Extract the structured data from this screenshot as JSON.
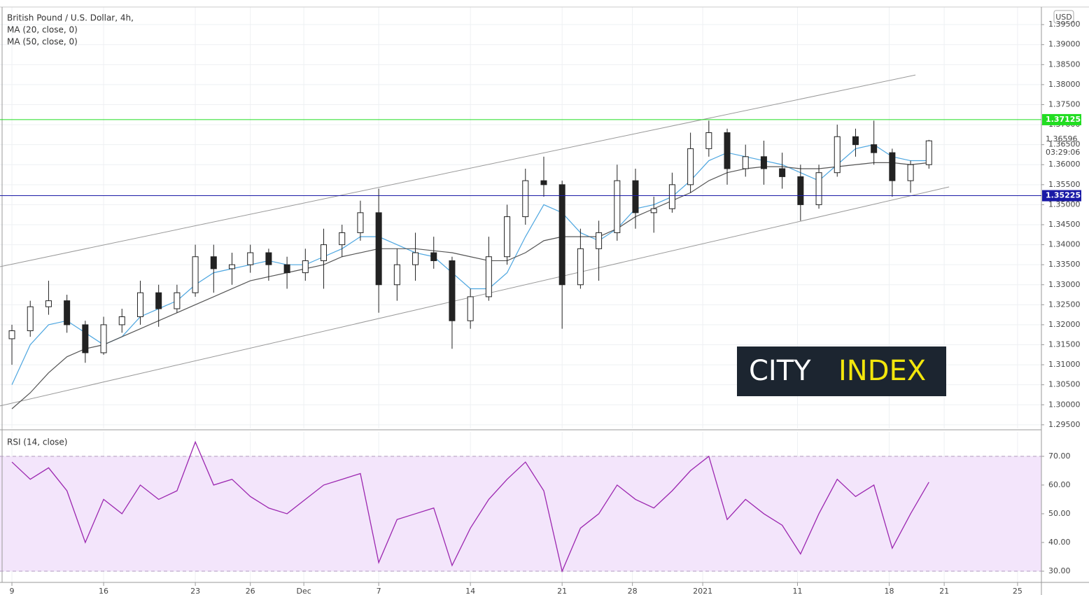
{
  "chart_data": [
    {
      "type": "candlestick",
      "title": "British Pound / U.S. Dollar, 4h,",
      "x": [
        0,
        6,
        12,
        18,
        24,
        30,
        36,
        42,
        48,
        54,
        60,
        66,
        72,
        78,
        84,
        90,
        96,
        102,
        108,
        114,
        120,
        126,
        132,
        138,
        144,
        150,
        156,
        162,
        168,
        174,
        180,
        186,
        192,
        198,
        204,
        210,
        216,
        222,
        228,
        234,
        240,
        246,
        252,
        258,
        264,
        270,
        276,
        282,
        288,
        294,
        300
      ],
      "open": [
        1.3165,
        1.3185,
        1.3245,
        1.326,
        1.32,
        1.313,
        1.32,
        1.322,
        1.328,
        1.324,
        1.328,
        1.337,
        1.334,
        1.335,
        1.338,
        1.335,
        1.333,
        1.336,
        1.34,
        1.343,
        1.348,
        1.33,
        1.335,
        1.338,
        1.336,
        1.321,
        1.327,
        1.337,
        1.347,
        1.356,
        1.355,
        1.33,
        1.339,
        1.343,
        1.356,
        1.348,
        1.349,
        1.355,
        1.364,
        1.368,
        1.359,
        1.362,
        1.359,
        1.357,
        1.35,
        1.358,
        1.367,
        1.365,
        1.363,
        1.356,
        1.36
      ],
      "high": [
        1.32,
        1.326,
        1.331,
        1.3275,
        1.321,
        1.322,
        1.324,
        1.331,
        1.33,
        1.33,
        1.34,
        1.34,
        1.338,
        1.34,
        1.339,
        1.337,
        1.339,
        1.344,
        1.345,
        1.351,
        1.354,
        1.339,
        1.343,
        1.342,
        1.337,
        1.329,
        1.342,
        1.35,
        1.359,
        1.362,
        1.356,
        1.344,
        1.346,
        1.36,
        1.359,
        1.352,
        1.358,
        1.368,
        1.371,
        1.369,
        1.365,
        1.366,
        1.363,
        1.36,
        1.36,
        1.37,
        1.369,
        1.371,
        1.364,
        1.361,
        1.3662
      ],
      "low": [
        1.31,
        1.317,
        1.3225,
        1.318,
        1.3105,
        1.3125,
        1.318,
        1.32,
        1.3195,
        1.323,
        1.327,
        1.328,
        1.33,
        1.333,
        1.331,
        1.329,
        1.331,
        1.329,
        1.337,
        1.341,
        1.323,
        1.326,
        1.331,
        1.334,
        1.314,
        1.319,
        1.326,
        1.335,
        1.345,
        1.352,
        1.319,
        1.329,
        1.331,
        1.341,
        1.344,
        1.343,
        1.348,
        1.353,
        1.362,
        1.355,
        1.357,
        1.355,
        1.354,
        1.346,
        1.349,
        1.357,
        1.362,
        1.36,
        1.352,
        1.353,
        1.359
      ],
      "close": [
        1.3185,
        1.3245,
        1.326,
        1.32,
        1.313,
        1.32,
        1.322,
        1.328,
        1.324,
        1.328,
        1.337,
        1.334,
        1.335,
        1.338,
        1.335,
        1.333,
        1.336,
        1.34,
        1.343,
        1.348,
        1.33,
        1.335,
        1.338,
        1.336,
        1.321,
        1.327,
        1.337,
        1.347,
        1.356,
        1.355,
        1.33,
        1.339,
        1.343,
        1.356,
        1.348,
        1.349,
        1.355,
        1.364,
        1.368,
        1.359,
        1.362,
        1.359,
        1.357,
        1.35,
        1.358,
        1.367,
        1.365,
        1.363,
        1.356,
        1.36,
        1.36596
      ],
      "series": [
        {
          "name": "MA (20, close, 0)",
          "color": "#4da6e0",
          "values": [
            1.305,
            1.315,
            1.32,
            1.321,
            1.318,
            1.315,
            1.317,
            1.322,
            1.324,
            1.326,
            1.33,
            1.333,
            1.334,
            1.335,
            1.336,
            1.335,
            1.335,
            1.337,
            1.339,
            1.342,
            1.342,
            1.34,
            1.338,
            1.337,
            1.333,
            1.329,
            1.329,
            1.333,
            1.342,
            1.35,
            1.348,
            1.343,
            1.341,
            1.344,
            1.349,
            1.35,
            1.352,
            1.356,
            1.361,
            1.363,
            1.362,
            1.361,
            1.36,
            1.358,
            1.356,
            1.36,
            1.364,
            1.365,
            1.362,
            1.361,
            1.361
          ]
        },
        {
          "name": "MA (50, close, 0)",
          "color": "#555555",
          "values": [
            1.299,
            1.303,
            1.308,
            1.312,
            1.314,
            1.315,
            1.317,
            1.319,
            1.321,
            1.323,
            1.325,
            1.327,
            1.329,
            1.331,
            1.332,
            1.333,
            1.334,
            1.335,
            1.337,
            1.338,
            1.339,
            1.339,
            1.339,
            1.3385,
            1.338,
            1.337,
            1.336,
            1.336,
            1.338,
            1.341,
            1.342,
            1.342,
            1.342,
            1.344,
            1.347,
            1.349,
            1.351,
            1.353,
            1.356,
            1.358,
            1.359,
            1.3595,
            1.3595,
            1.359,
            1.359,
            1.3595,
            1.36,
            1.3605,
            1.3605,
            1.36,
            1.3605
          ]
        }
      ],
      "trendlines": [
        {
          "x": [
            -3.9,
            295.6
          ],
          "y": [
            1.33451,
            1.38241
          ]
        },
        {
          "x": [
            -3.9,
            306.6
          ],
          "y": [
            1.29972,
            1.35444
          ]
        }
      ],
      "hlines": [
        {
          "value": 1.37125,
          "color": "#22dd22"
        },
        {
          "value": 1.35225,
          "color": "#1a1aa6"
        }
      ],
      "xlim": [
        -3.9,
        336.8
      ],
      "ylim": [
        1.2941,
        1.3994
      ],
      "yticks": [
        {
          "value": 1.295,
          "label": "1.29500"
        },
        {
          "value": 1.3,
          "label": "1.30000"
        },
        {
          "value": 1.305,
          "label": "1.30500"
        },
        {
          "value": 1.31,
          "label": "1.31000"
        },
        {
          "value": 1.315,
          "label": "1.31500"
        },
        {
          "value": 1.32,
          "label": "1.32000"
        },
        {
          "value": 1.325,
          "label": "1.32500"
        },
        {
          "value": 1.33,
          "label": "1.33000"
        },
        {
          "value": 1.335,
          "label": "1.33500"
        },
        {
          "value": 1.34,
          "label": "1.34000"
        },
        {
          "value": 1.345,
          "label": "1.34500"
        },
        {
          "value": 1.35,
          "label": "1.35000"
        },
        {
          "value": 1.355,
          "label": "1.35500"
        },
        {
          "value": 1.36,
          "label": "1.36000"
        },
        {
          "value": 1.365,
          "label": "1.36500"
        },
        {
          "value": 1.37,
          "label": "1.37000"
        },
        {
          "value": 1.375,
          "label": "1.37500"
        },
        {
          "value": 1.38,
          "label": "1.38000"
        },
        {
          "value": 1.385,
          "label": "1.38500"
        },
        {
          "value": 1.39,
          "label": "1.39000"
        },
        {
          "value": 1.395,
          "label": "1.39500"
        }
      ],
      "grid": true
    },
    {
      "type": "line",
      "title": "RSI (14, close)",
      "x": [
        0,
        6,
        12,
        18,
        24,
        30,
        36,
        42,
        48,
        54,
        60,
        66,
        72,
        78,
        84,
        90,
        96,
        102,
        108,
        114,
        120,
        126,
        132,
        138,
        144,
        150,
        156,
        162,
        168,
        174,
        180,
        186,
        192,
        198,
        204,
        210,
        216,
        222,
        228,
        234,
        240,
        246,
        252,
        258,
        264,
        270,
        276,
        282,
        288,
        294,
        300
      ],
      "values": [
        68,
        62,
        66,
        58,
        40,
        55,
        50,
        60,
        55,
        58,
        75,
        60,
        62,
        56,
        52,
        50,
        55,
        60,
        62,
        64,
        33,
        48,
        50,
        52,
        32,
        45,
        55,
        62,
        68,
        58,
        30,
        45,
        50,
        60,
        55,
        52,
        58,
        65,
        70,
        48,
        55,
        50,
        46,
        36,
        50,
        62,
        56,
        60,
        38,
        50,
        61
      ],
      "color": "#9c27b0",
      "band": [
        30,
        70
      ],
      "band_color": "#f3e5fb",
      "xlim": [
        -3.9,
        336.8
      ],
      "ylim": [
        26.1,
        78.5
      ],
      "yticks": [
        {
          "value": 30,
          "label": "30.00"
        },
        {
          "value": 40,
          "label": "40.00"
        },
        {
          "value": 50,
          "label": "50.00"
        },
        {
          "value": 60,
          "label": "60.00"
        },
        {
          "value": 70,
          "label": "70.00"
        }
      ],
      "xticks": [
        {
          "value": 0,
          "label": "9"
        },
        {
          "value": 30,
          "label": "16"
        },
        {
          "value": 60,
          "label": "23"
        },
        {
          "value": 78,
          "label": "26"
        },
        {
          "value": 95.5,
          "label": "Dec"
        },
        {
          "value": 120,
          "label": "7"
        },
        {
          "value": 150,
          "label": "14"
        },
        {
          "value": 180,
          "label": "21"
        },
        {
          "value": 203,
          "label": "28"
        },
        {
          "value": 226,
          "label": "2021"
        },
        {
          "value": 257,
          "label": "11"
        },
        {
          "value": 287,
          "label": "18"
        },
        {
          "value": 305,
          "label": "21"
        },
        {
          "value": 329,
          "label": "25"
        }
      ],
      "grid": true
    }
  ],
  "currency": "USD",
  "countdown": "03:29:06",
  "logo": [
    "CITY",
    "INDEX"
  ]
}
